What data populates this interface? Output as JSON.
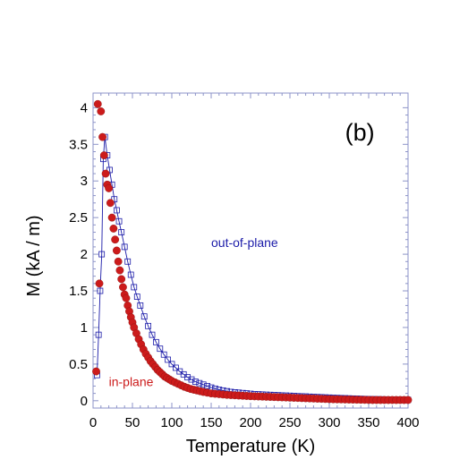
{
  "chart_data": {
    "type": "scatter",
    "panel_label": "(b)",
    "xlabel": "Temperature (K)",
    "ylabel": "M (kA / m)",
    "xlim": [
      0,
      400
    ],
    "ylim": [
      -0.1,
      4.2
    ],
    "xticks": [
      0,
      50,
      100,
      150,
      200,
      250,
      300,
      350,
      400
    ],
    "yticks": [
      0,
      0.5,
      1,
      1.5,
      2,
      2.5,
      3,
      3.5,
      4
    ],
    "xtick_labels": [
      "0",
      "50",
      "100",
      "150",
      "200",
      "250",
      "300",
      "350",
      "400"
    ],
    "ytick_labels": [
      "0",
      "0.5",
      "1",
      "1.5",
      "2",
      "2.5",
      "3",
      "3.5",
      "4"
    ],
    "grid": false,
    "series": [
      {
        "name": "out-of-plane",
        "color": "#1a1aa8",
        "marker": "open-square",
        "connected": true,
        "x": [
          5,
          7,
          9,
          11,
          13,
          15,
          18,
          21,
          24,
          27,
          30,
          33,
          36,
          40,
          44,
          48,
          52,
          56,
          60,
          65,
          70,
          75,
          80,
          85,
          90,
          95,
          100,
          105,
          110,
          115,
          120,
          125,
          130,
          135,
          140,
          145,
          150,
          155,
          160,
          165,
          170,
          175,
          180,
          185,
          190,
          195,
          200,
          205,
          210,
          215,
          220,
          225,
          230,
          235,
          240,
          245,
          250,
          255,
          260,
          265,
          270,
          275,
          280,
          285,
          290,
          295,
          300,
          305,
          310,
          315,
          320,
          325,
          330,
          335,
          340,
          345,
          350,
          355,
          360,
          365,
          370,
          375,
          380,
          385,
          390,
          395,
          400
        ],
        "y": [
          0.35,
          0.9,
          1.5,
          2.0,
          3.3,
          3.6,
          3.35,
          3.15,
          2.95,
          2.75,
          2.6,
          2.45,
          2.3,
          2.1,
          1.9,
          1.72,
          1.55,
          1.42,
          1.3,
          1.15,
          1.02,
          0.9,
          0.8,
          0.71,
          0.63,
          0.56,
          0.5,
          0.45,
          0.4,
          0.36,
          0.32,
          0.29,
          0.26,
          0.24,
          0.22,
          0.2,
          0.18,
          0.165,
          0.15,
          0.14,
          0.13,
          0.12,
          0.115,
          0.11,
          0.105,
          0.1,
          0.095,
          0.09,
          0.088,
          0.085,
          0.082,
          0.08,
          0.077,
          0.075,
          0.072,
          0.07,
          0.068,
          0.065,
          0.062,
          0.06,
          0.058,
          0.055,
          0.052,
          0.05,
          0.048,
          0.045,
          0.043,
          0.04,
          0.038,
          0.036,
          0.034,
          0.032,
          0.03,
          0.028,
          0.026,
          0.024,
          0.022,
          0.021,
          0.02,
          0.019,
          0.018,
          0.017,
          0.016,
          0.015,
          0.014,
          0.013,
          0.012
        ]
      },
      {
        "name": "in-plane",
        "color": "#cc1b1b",
        "marker": "filled-circle",
        "connected": false,
        "x": [
          4,
          6,
          8,
          10,
          12,
          14,
          16,
          18,
          20,
          22,
          24,
          26,
          28,
          30,
          32,
          34,
          36,
          38,
          40,
          42,
          44,
          46,
          48,
          50,
          52,
          55,
          58,
          61,
          64,
          67,
          70,
          73,
          76,
          79,
          82,
          85,
          88,
          91,
          94,
          97,
          100,
          104,
          108,
          112,
          116,
          120,
          124,
          128,
          132,
          136,
          140,
          145,
          150,
          155,
          160,
          165,
          170,
          175,
          180,
          185,
          190,
          195,
          200,
          205,
          210,
          215,
          220,
          225,
          230,
          235,
          240,
          245,
          250,
          255,
          260,
          265,
          270,
          275,
          280,
          285,
          290,
          295,
          300,
          305,
          310,
          315,
          320,
          325,
          330,
          335,
          340,
          345,
          350,
          355,
          360,
          365,
          370,
          375,
          380,
          385,
          390,
          395,
          400
        ],
        "y": [
          0.4,
          4.05,
          1.6,
          3.95,
          3.6,
          3.35,
          3.1,
          2.95,
          2.9,
          2.7,
          2.5,
          2.35,
          2.2,
          2.05,
          1.9,
          1.78,
          1.66,
          1.55,
          1.45,
          1.4,
          1.3,
          1.22,
          1.14,
          1.07,
          1.0,
          0.92,
          0.84,
          0.77,
          0.7,
          0.64,
          0.59,
          0.54,
          0.5,
          0.46,
          0.42,
          0.39,
          0.36,
          0.33,
          0.31,
          0.29,
          0.27,
          0.25,
          0.23,
          0.21,
          0.19,
          0.175,
          0.16,
          0.15,
          0.14,
          0.13,
          0.12,
          0.11,
          0.1,
          0.095,
          0.09,
          0.085,
          0.08,
          0.077,
          0.074,
          0.071,
          0.068,
          0.065,
          0.062,
          0.06,
          0.058,
          0.056,
          0.054,
          0.052,
          0.05,
          0.048,
          0.046,
          0.044,
          0.042,
          0.04,
          0.038,
          0.036,
          0.034,
          0.032,
          0.03,
          0.028,
          0.026,
          0.024,
          0.022,
          0.02,
          0.019,
          0.018,
          0.017,
          0.016,
          0.015,
          0.014,
          0.013,
          0.012,
          0.011,
          0.01,
          0.01,
          0.01,
          0.01,
          0.01,
          0.01,
          0.01,
          0.01,
          0.01,
          0.01
        ]
      }
    ],
    "annotations": [
      {
        "text": "out-of-plane",
        "x": 150,
        "y": 2.1,
        "color": "#1a1aa8"
      },
      {
        "text": "in-plane",
        "x": 20,
        "y": 0.2,
        "color": "#cc1b1b"
      }
    ],
    "panel_label_position": {
      "x": 320,
      "y": 3.55
    }
  }
}
